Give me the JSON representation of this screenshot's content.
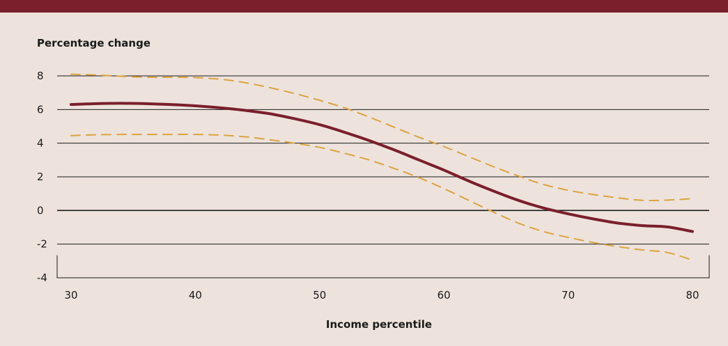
{
  "chart_data": {
    "type": "line",
    "title": "",
    "ylabel": "Percentage change",
    "xlabel": "Income percentile",
    "xlim": [
      30,
      80
    ],
    "ylim": [
      -4,
      8
    ],
    "x_ticks": [
      30,
      40,
      50,
      60,
      70,
      80
    ],
    "y_ticks": [
      -4,
      -2,
      0,
      2,
      4,
      6,
      8
    ],
    "grid": "horizontal",
    "colors": {
      "background": "#ede3dc",
      "top_bar": "#7a1f2b",
      "estimate": "#7a1f2b",
      "confidence_band": "#dca23f",
      "gridline": "#1a1a1a"
    },
    "series": [
      {
        "style": "solid",
        "x": [
          30,
          32,
          34,
          36,
          38,
          40,
          42,
          44,
          46,
          48,
          50,
          52,
          54,
          56,
          58,
          60,
          62,
          64,
          66,
          68,
          70,
          72,
          74,
          76,
          78,
          80
        ],
        "y": [
          6.3,
          6.35,
          6.37,
          6.35,
          6.3,
          6.22,
          6.1,
          5.95,
          5.75,
          5.45,
          5.1,
          4.65,
          4.15,
          3.6,
          3.0,
          2.4,
          1.75,
          1.15,
          0.6,
          0.15,
          -0.2,
          -0.5,
          -0.75,
          -0.9,
          -0.98,
          -1.25
        ]
      },
      {
        "style": "dashed",
        "x": [
          30,
          32,
          34,
          36,
          38,
          40,
          42,
          44,
          46,
          48,
          50,
          52,
          54,
          56,
          58,
          60,
          62,
          64,
          66,
          68,
          70,
          72,
          74,
          76,
          78,
          80
        ],
        "y": [
          8.1,
          8.05,
          7.98,
          7.92,
          7.92,
          7.9,
          7.8,
          7.6,
          7.3,
          6.95,
          6.55,
          6.1,
          5.55,
          4.95,
          4.35,
          3.8,
          3.2,
          2.6,
          2.05,
          1.55,
          1.2,
          0.95,
          0.75,
          0.6,
          0.62,
          0.7
        ]
      },
      {
        "style": "dashed",
        "x": [
          30,
          32,
          34,
          36,
          38,
          40,
          42,
          44,
          46,
          48,
          50,
          52,
          54,
          56,
          58,
          60,
          62,
          64,
          66,
          68,
          70,
          72,
          74,
          76,
          78,
          80
        ],
        "y": [
          4.45,
          4.5,
          4.52,
          4.52,
          4.52,
          4.52,
          4.48,
          4.38,
          4.2,
          4.0,
          3.75,
          3.4,
          3.0,
          2.5,
          1.95,
          1.3,
          0.6,
          -0.1,
          -0.75,
          -1.25,
          -1.6,
          -1.9,
          -2.15,
          -2.35,
          -2.5,
          -2.95
        ]
      }
    ]
  }
}
